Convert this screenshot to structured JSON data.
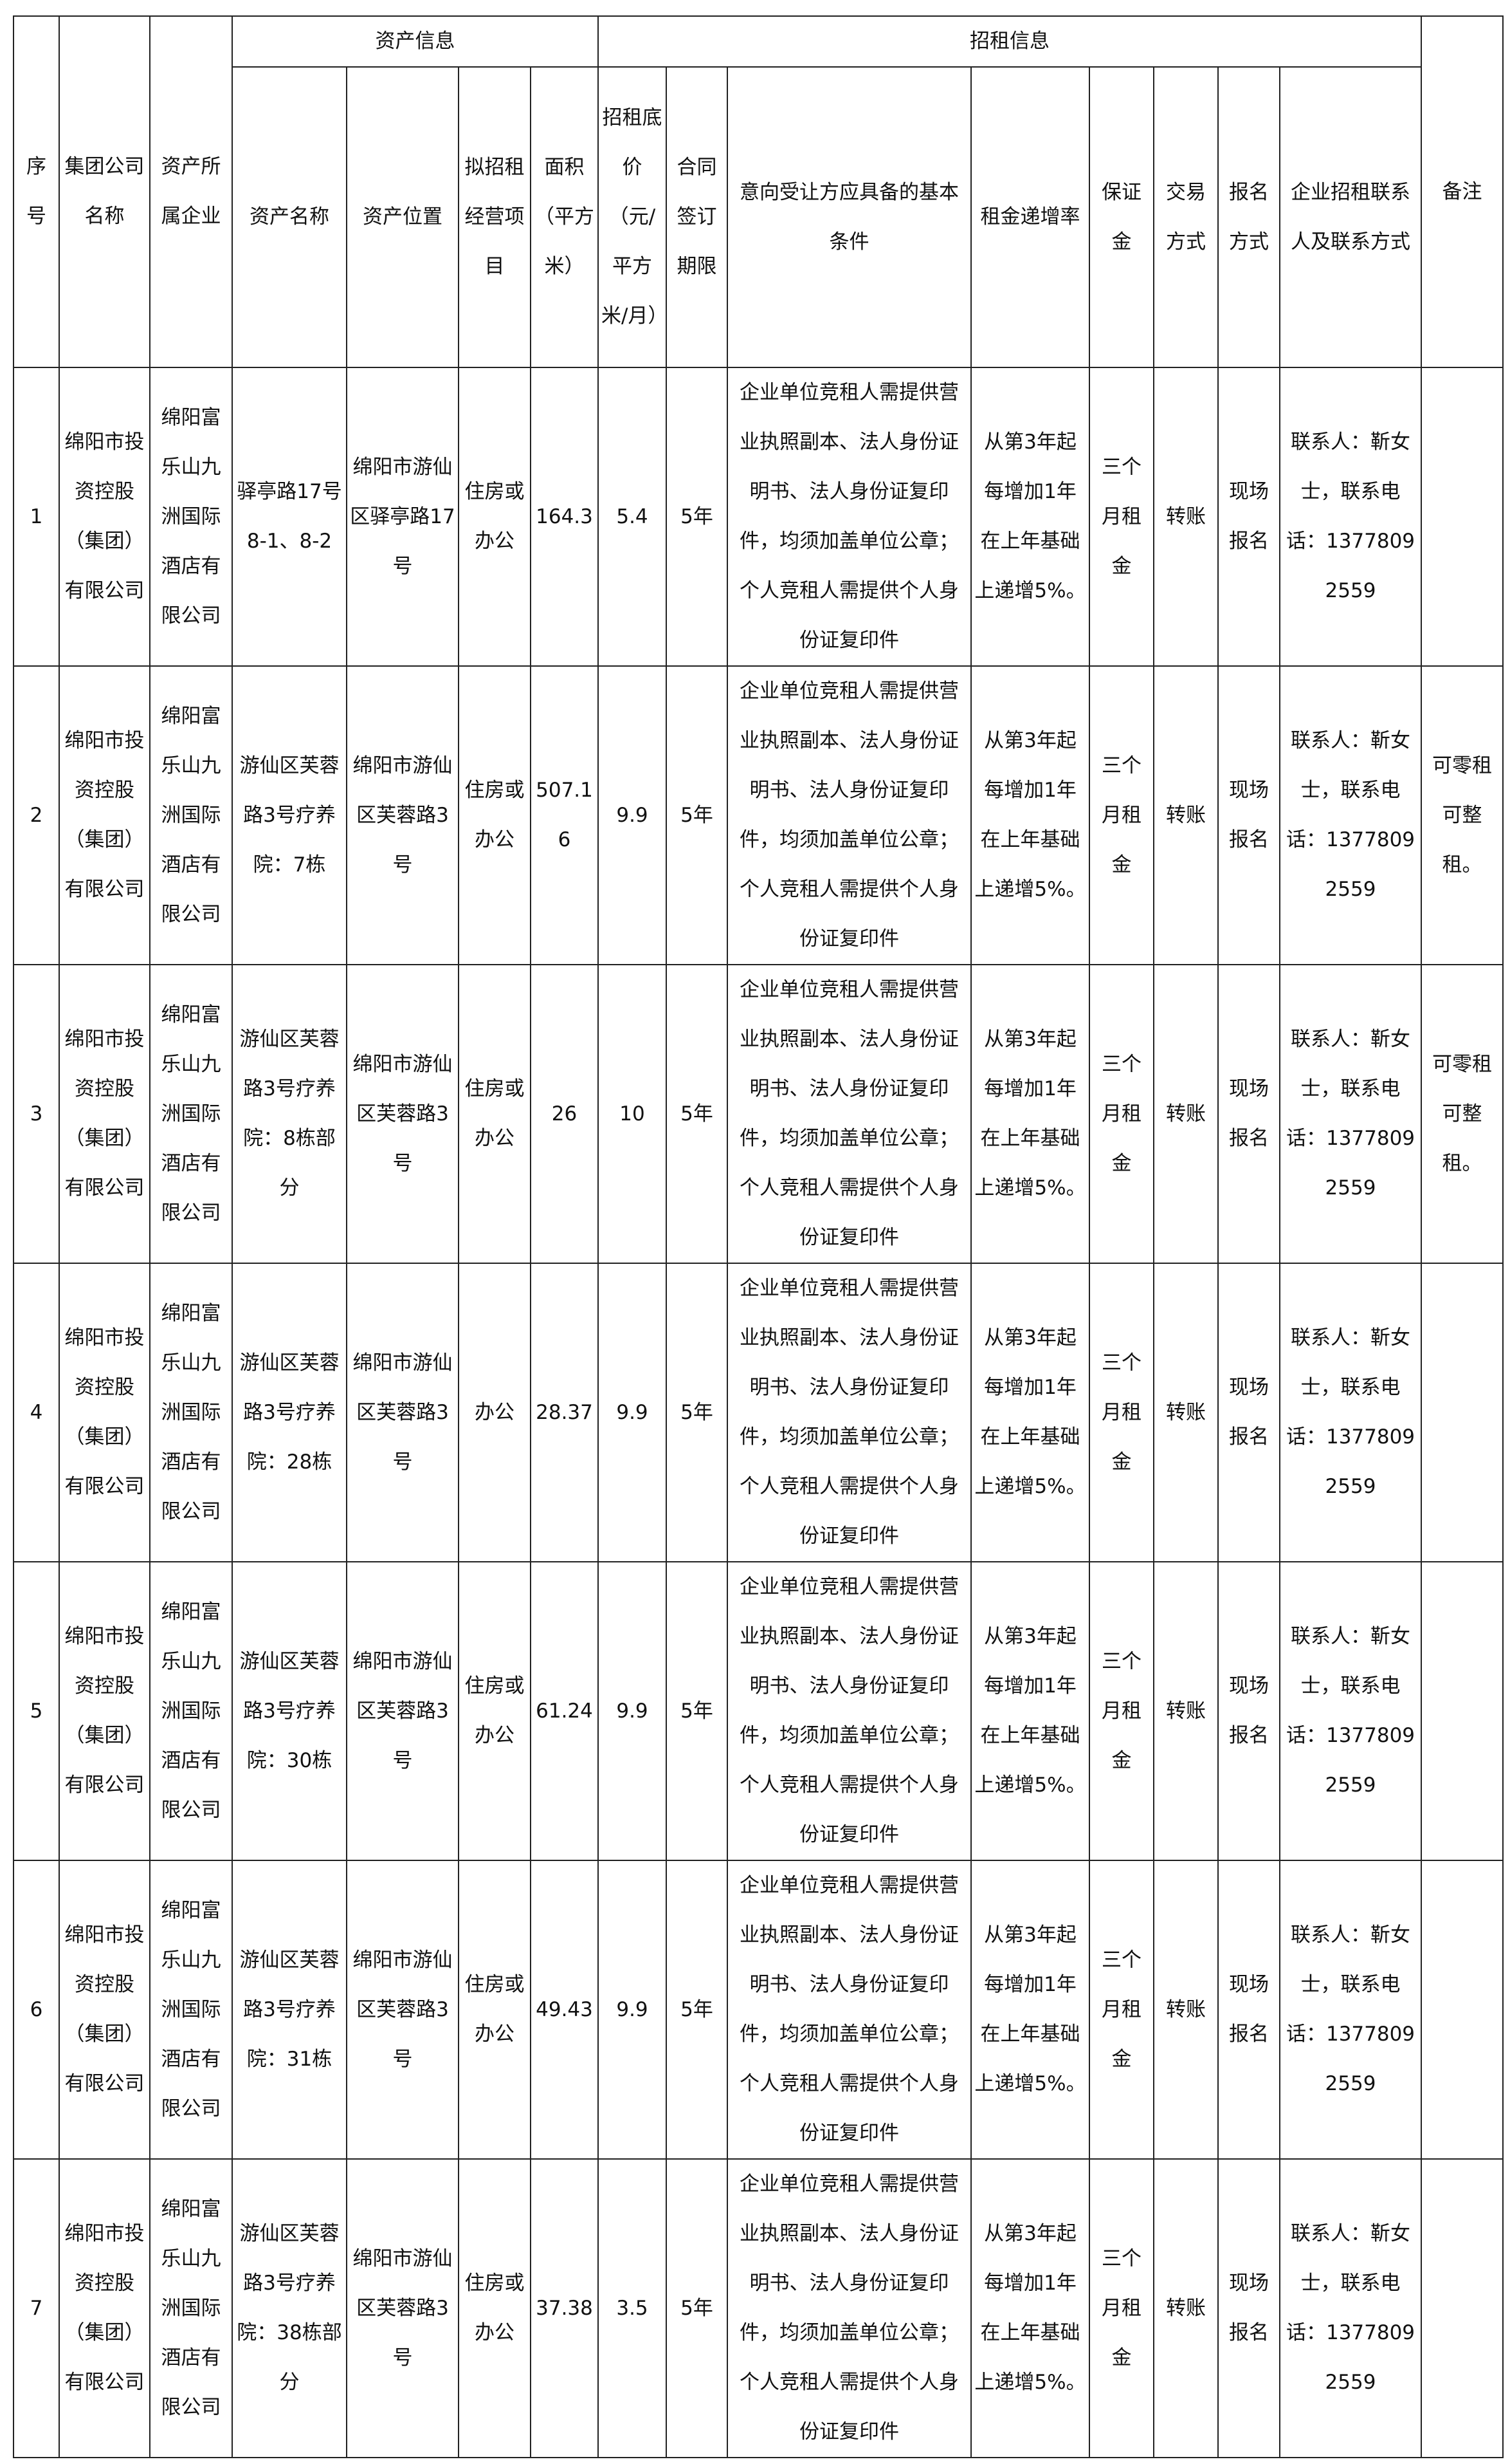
{
  "header": {
    "seq": "序号",
    "group_company": "集团公司名称",
    "owner_company": "资产所属企业",
    "asset_info": "资产信息",
    "rental_info": "招租信息",
    "remarks": "备注",
    "asset_name": "资产名称",
    "asset_location": "资产位置",
    "planned_use": "拟招租经营项目",
    "area": "面积（平方米）",
    "base_price": "招租底价（元/平方米/月）",
    "contract_term": "合同签订期限",
    "conditions": "意向受让方应具备的基本条件",
    "rent_increase": "租金递增率",
    "deposit": "保证金",
    "transaction": "交易方式",
    "registration": "报名方式",
    "contact": "企业招租联系人及联系方式"
  },
  "rows": [
    {
      "seq": "1",
      "group_company": "绵阳市投资控股（集团）有限公司",
      "owner_company": "绵阳富乐山九洲国际酒店有限公司",
      "asset_name": "驿亭路17号8-1、8-2",
      "asset_location": "绵阳市游仙区驿亭路17号",
      "planned_use": "住房或办公",
      "area": "164.3",
      "base_price": "5.4",
      "contract_term": "5年",
      "conditions": "企业单位竞租人需提供营业执照副本、法人身份证明书、法人身份证复印件，均须加盖单位公章；个人竞租人需提供个人身份证复印件",
      "rent_increase": "从第3年起每增加1年在上年基础上递增5%。",
      "deposit": "三个月租金",
      "transaction": "转账",
      "registration": "现场报名",
      "contact": "联系人：靳女士，联系电话：13778092559",
      "remarks": ""
    },
    {
      "seq": "2",
      "group_company": "绵阳市投资控股（集团）有限公司",
      "owner_company": "绵阳富乐山九洲国际酒店有限公司",
      "asset_name": "游仙区芙蓉路3号疗养院：7栋",
      "asset_location": "绵阳市游仙区芙蓉路3号",
      "planned_use": "住房或办公",
      "area": "507.16",
      "base_price": "9.9",
      "contract_term": "5年",
      "conditions": "企业单位竞租人需提供营业执照副本、法人身份证明书、法人身份证复印件，均须加盖单位公章；个人竞租人需提供个人身份证复印件",
      "rent_increase": "从第3年起每增加1年在上年基础上递增5%。",
      "deposit": "三个月租金",
      "transaction": "转账",
      "registration": "现场报名",
      "contact": "联系人：靳女士，联系电话：13778092559",
      "remarks": "可零租可整租。"
    },
    {
      "seq": "3",
      "group_company": "绵阳市投资控股（集团）有限公司",
      "owner_company": "绵阳富乐山九洲国际酒店有限公司",
      "asset_name": "游仙区芙蓉路3号疗养院：8栋部分",
      "asset_location": "绵阳市游仙区芙蓉路3号",
      "planned_use": "住房或办公",
      "area": "26",
      "base_price": "10",
      "contract_term": "5年",
      "conditions": "企业单位竞租人需提供营业执照副本、法人身份证明书、法人身份证复印件，均须加盖单位公章；个人竞租人需提供个人身份证复印件",
      "rent_increase": "从第3年起每增加1年在上年基础上递增5%。",
      "deposit": "三个月租金",
      "transaction": "转账",
      "registration": "现场报名",
      "contact": "联系人：靳女士，联系电话：13778092559",
      "remarks": "可零租可整租。"
    },
    {
      "seq": "4",
      "group_company": "绵阳市投资控股（集团）有限公司",
      "owner_company": "绵阳富乐山九洲国际酒店有限公司",
      "asset_name": "游仙区芙蓉路3号疗养院：28栋",
      "asset_location": "绵阳市游仙区芙蓉路3号",
      "planned_use": "办公",
      "area": "28.37",
      "base_price": "9.9",
      "contract_term": "5年",
      "conditions": "企业单位竞租人需提供营业执照副本、法人身份证明书、法人身份证复印件，均须加盖单位公章；个人竞租人需提供个人身份证复印件",
      "rent_increase": "从第3年起每增加1年在上年基础上递增5%。",
      "deposit": "三个月租金",
      "transaction": "转账",
      "registration": "现场报名",
      "contact": "联系人：靳女士，联系电话：13778092559",
      "remarks": ""
    },
    {
      "seq": "5",
      "group_company": "绵阳市投资控股（集团）有限公司",
      "owner_company": "绵阳富乐山九洲国际酒店有限公司",
      "asset_name": "游仙区芙蓉路3号疗养院：30栋",
      "asset_location": "绵阳市游仙区芙蓉路3号",
      "planned_use": "住房或办公",
      "area": "61.24",
      "base_price": "9.9",
      "contract_term": "5年",
      "conditions": "企业单位竞租人需提供营业执照副本、法人身份证明书、法人身份证复印件，均须加盖单位公章；个人竞租人需提供个人身份证复印件",
      "rent_increase": "从第3年起每增加1年在上年基础上递增5%。",
      "deposit": "三个月租金",
      "transaction": "转账",
      "registration": "现场报名",
      "contact": "联系人：靳女士，联系电话：13778092559",
      "remarks": ""
    },
    {
      "seq": "6",
      "group_company": "绵阳市投资控股（集团）有限公司",
      "owner_company": "绵阳富乐山九洲国际酒店有限公司",
      "asset_name": "游仙区芙蓉路3号疗养院：31栋",
      "asset_location": "绵阳市游仙区芙蓉路3号",
      "planned_use": "住房或办公",
      "area": "49.43",
      "base_price": "9.9",
      "contract_term": "5年",
      "conditions": "企业单位竞租人需提供营业执照副本、法人身份证明书、法人身份证复印件，均须加盖单位公章；个人竞租人需提供个人身份证复印件",
      "rent_increase": "从第3年起每增加1年在上年基础上递增5%。",
      "deposit": "三个月租金",
      "transaction": "转账",
      "registration": "现场报名",
      "contact": "联系人：靳女士，联系电话：13778092559",
      "remarks": ""
    },
    {
      "seq": "7",
      "group_company": "绵阳市投资控股（集团）有限公司",
      "owner_company": "绵阳富乐山九洲国际酒店有限公司",
      "asset_name": "游仙区芙蓉路3号疗养院：38栋部分",
      "asset_location": "绵阳市游仙区芙蓉路3号",
      "planned_use": "住房或办公",
      "area": "37.38",
      "base_price": "3.5",
      "contract_term": "5年",
      "conditions": "企业单位竞租人需提供营业执照副本、法人身份证明书、法人身份证复印件，均须加盖单位公章；个人竞租人需提供个人身份证复印件",
      "rent_increase": "从第3年起每增加1年在上年基础上递增5%。",
      "deposit": "三个月租金",
      "transaction": "转账",
      "registration": "现场报名",
      "contact": "联系人：靳女士，联系电话：13778092559",
      "remarks": ""
    }
  ]
}
